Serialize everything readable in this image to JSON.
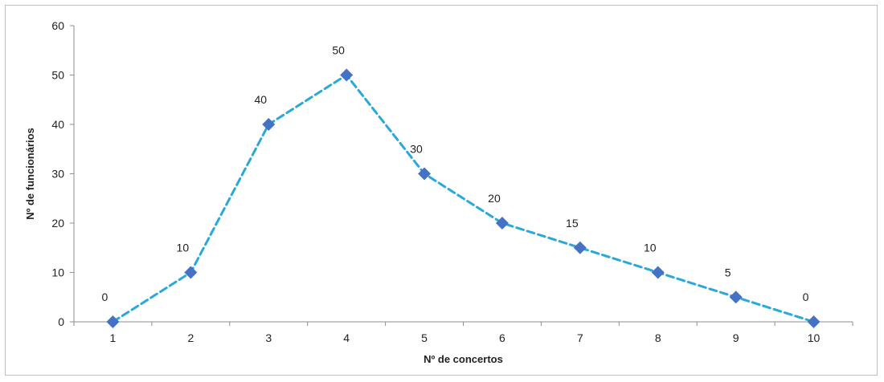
{
  "chart_data": {
    "type": "line",
    "title": "",
    "xlabel": "Nº de concertos",
    "ylabel": "Nº de funcionários",
    "categories": [
      "1",
      "2",
      "3",
      "4",
      "5",
      "6",
      "7",
      "8",
      "9",
      "10"
    ],
    "series": [
      {
        "values": [
          0,
          10,
          40,
          50,
          30,
          20,
          15,
          10,
          5,
          0
        ],
        "color": "#29a8dc",
        "marker_color": "#4472c4",
        "line_style": "dashed",
        "marker": "diamond"
      }
    ],
    "ylim": [
      0,
      60
    ],
    "yticks": [
      0,
      10,
      20,
      30,
      40,
      50,
      60
    ],
    "data_labels": true,
    "grid": false,
    "legend": "none"
  }
}
